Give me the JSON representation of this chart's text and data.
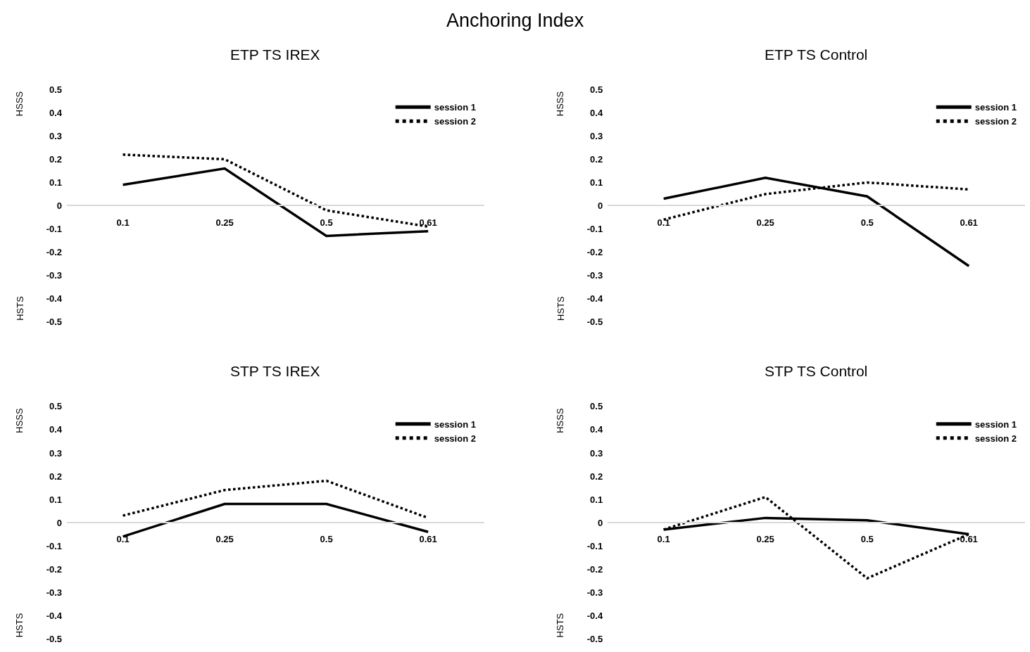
{
  "chart_data": [
    {
      "type": "line",
      "title": "ETP TS IREX",
      "categories": [
        "0.1",
        "0.25",
        "0.5",
        "0.61"
      ],
      "ylim": [
        -0.5,
        0.5
      ],
      "yticks": [
        -0.5,
        -0.4,
        -0.3,
        -0.2,
        -0.1,
        0,
        0.1,
        0.2,
        0.3,
        0.4,
        0.5
      ],
      "legend": "top right",
      "marker": "none",
      "annotations": [
        "HSSS",
        "HSTS",
        "Anchoring Index"
      ],
      "series": [
        {
          "name": "session 1",
          "color": "#000000",
          "line_style": "solid",
          "values": [
            0.09,
            0.16,
            -0.13,
            -0.11
          ]
        },
        {
          "name": "session 2",
          "color": "#000000",
          "line_style": "dotted",
          "values": [
            0.22,
            0.2,
            -0.02,
            -0.09
          ]
        }
      ]
    },
    {
      "type": "line",
      "title": "ETP TS Control",
      "categories": [
        "0.1",
        "0.25",
        "0.5",
        "0.61"
      ],
      "ylim": [
        -0.5,
        0.5
      ],
      "yticks": [
        -0.5,
        -0.4,
        -0.3,
        -0.2,
        -0.1,
        0,
        0.1,
        0.2,
        0.3,
        0.4,
        0.5
      ],
      "legend": "top right",
      "marker": "none",
      "annotations": [
        "HSSS",
        "HSTS"
      ],
      "series": [
        {
          "name": "session 1",
          "color": "#000000",
          "line_style": "solid",
          "values": [
            0.03,
            0.12,
            0.04,
            -0.26
          ]
        },
        {
          "name": "session 2",
          "color": "#000000",
          "line_style": "dotted",
          "values": [
            -0.06,
            0.05,
            0.1,
            0.07
          ]
        }
      ]
    },
    {
      "type": "line",
      "title": "STP TS IREX",
      "categories": [
        "0.1",
        "0.25",
        "0.5",
        "0.61"
      ],
      "ylim": [
        -0.5,
        0.5
      ],
      "yticks": [
        -0.5,
        -0.4,
        -0.3,
        -0.2,
        -0.1,
        0,
        0.1,
        0.2,
        0.3,
        0.4,
        0.5
      ],
      "legend": "top right",
      "marker": "none",
      "annotations": [
        "HSSS",
        "HSTS"
      ],
      "series": [
        {
          "name": "session 1",
          "color": "#000000",
          "line_style": "solid",
          "values": [
            -0.06,
            0.08,
            0.08,
            -0.04
          ]
        },
        {
          "name": "session 2",
          "color": "#000000",
          "line_style": "dotted",
          "values": [
            0.03,
            0.14,
            0.18,
            0.02
          ]
        }
      ]
    },
    {
      "type": "line",
      "title": "STP TS Control",
      "categories": [
        "0.1",
        "0.25",
        "0.5",
        "0.61"
      ],
      "ylim": [
        -0.5,
        0.5
      ],
      "yticks": [
        -0.5,
        -0.4,
        -0.3,
        -0.2,
        -0.1,
        0,
        0.1,
        0.2,
        0.3,
        0.4,
        0.5
      ],
      "legend": "top right",
      "marker": "none",
      "annotations": [
        "HSSS",
        "HSTS"
      ],
      "series": [
        {
          "name": "session 1",
          "color": "#000000",
          "line_style": "solid",
          "values": [
            -0.03,
            0.02,
            0.01,
            -0.05
          ]
        },
        {
          "name": "session 2",
          "color": "#000000",
          "line_style": "dotted",
          "values": [
            -0.03,
            0.11,
            -0.24,
            -0.05
          ]
        }
      ]
    }
  ]
}
